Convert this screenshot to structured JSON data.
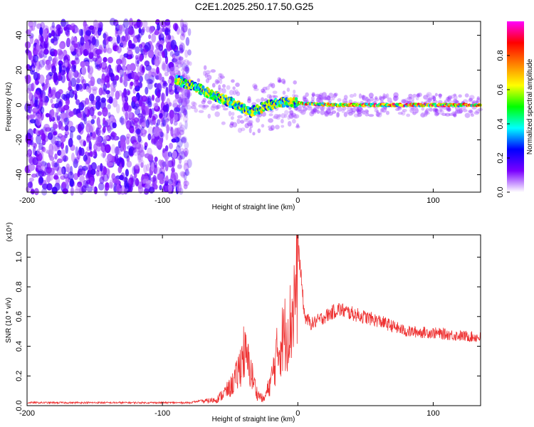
{
  "title": "C2E1.2025.250.17.50.G25",
  "colors": {
    "snr_line": "#ee3333",
    "background": "#ffffff",
    "frame": "#000000"
  },
  "chart_data": [
    {
      "type": "heatmap",
      "name": "spectrogram",
      "xlabel": "Height of straight line (km)",
      "ylabel": "Frequency (Hz)",
      "xlim": [
        -200,
        135
      ],
      "ylim": [
        -50,
        48
      ],
      "xticks": [
        -200,
        -100,
        0,
        100
      ],
      "yticks": [
        -40,
        -20,
        0,
        20,
        40
      ],
      "colorbar": {
        "label": "Normalized spectral amplitude",
        "range": [
          0,
          1
        ],
        "ticks": [
          0.0,
          0.2,
          0.4,
          0.6,
          0.8
        ],
        "tick_labels": [
          "0.0",
          "0.2",
          "0.4",
          "0.6",
          "0.8"
        ],
        "colormap": [
          "#ffffff",
          "#7a00ff",
          "#0000ff",
          "#00ffff",
          "#00ff00",
          "#ffff00",
          "#ff8000",
          "#ff0000",
          "#ff00ff"
        ]
      },
      "features": {
        "noise_region_x": [
          -200,
          -80
        ],
        "noise_amplitude_range": [
          0.05,
          0.2
        ],
        "trace_points": [
          {
            "x": -88,
            "y": 14
          },
          {
            "x": -75,
            "y": 10
          },
          {
            "x": -60,
            "y": 5
          },
          {
            "x": -45,
            "y": 0
          },
          {
            "x": -35,
            "y": -4
          },
          {
            "x": -25,
            "y": -1
          },
          {
            "x": -10,
            "y": 2
          },
          {
            "x": 0,
            "y": 1
          },
          {
            "x": 30,
            "y": 0
          },
          {
            "x": 135,
            "y": 0
          }
        ],
        "trace_amplitude_range": [
          0.3,
          0.95
        ]
      }
    },
    {
      "type": "line",
      "name": "snr",
      "xlabel": "Height of straight line (km)",
      "ylabel": "SNR (10 * v/v)",
      "y_multiplier": "(x10⁴)",
      "xlim": [
        -200,
        135
      ],
      "ylim": [
        0,
        1.15
      ],
      "xticks": [
        -200,
        -100,
        0,
        100
      ],
      "yticks": [
        0.0,
        0.2,
        0.4,
        0.6,
        0.8,
        1.0
      ],
      "ytick_labels": [
        "0.0",
        "0.2",
        "0.4",
        "0.6",
        "0.8",
        "1.0"
      ],
      "series": [
        {
          "name": "SNR",
          "envelope_x": [
            -200,
            -150,
            -100,
            -80,
            -60,
            -50,
            -45,
            -40,
            -35,
            -30,
            -25,
            -20,
            -15,
            -10,
            -5,
            -2,
            0,
            5,
            10,
            20,
            30,
            40,
            60,
            80,
            100,
            120,
            135
          ],
          "envelope_y": [
            0.02,
            0.02,
            0.02,
            0.02,
            0.05,
            0.15,
            0.25,
            0.45,
            0.3,
            0.1,
            0.05,
            0.2,
            0.45,
            0.6,
            0.7,
            0.95,
            1.1,
            0.6,
            0.55,
            0.6,
            0.65,
            0.62,
            0.57,
            0.5,
            0.49,
            0.47,
            0.46
          ]
        }
      ]
    }
  ]
}
